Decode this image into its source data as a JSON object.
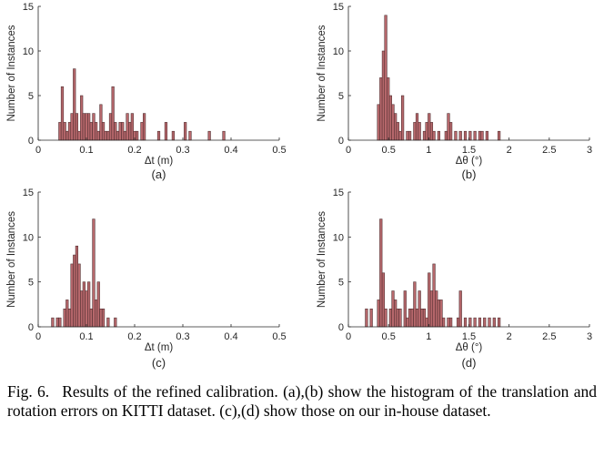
{
  "caption": {
    "label": "Fig. 6.",
    "text": "Results of the refined calibration. (a),(b) show the histogram of the translation and rotation errors on KITTI dataset. (c),(d) show those on our in-house dataset."
  },
  "colors": {
    "bar_fill": "#b7686c",
    "bar_edge": "#4a2a2c",
    "axis": "#262626",
    "grid": "#e6e6e6"
  },
  "chart_data": [
    {
      "id": "a",
      "type": "bar",
      "sublabel": "(a)",
      "xlabel": "Δt (m)",
      "ylabel": "Number of Instances",
      "xlim": [
        0,
        0.5
      ],
      "ylim": [
        0,
        15
      ],
      "xticks": [
        0,
        0.1,
        0.2,
        0.3,
        0.4,
        0.5
      ],
      "xtick_labels": [
        "0",
        "0.1",
        "0.2",
        "0.3",
        "0.4",
        "0.5"
      ],
      "yticks": [
        0,
        5,
        10,
        15
      ],
      "ytick_labels": [
        "0",
        "5",
        "10",
        "15"
      ],
      "grid": false,
      "bin_width": 0.005,
      "x": [
        0.045,
        0.05,
        0.055,
        0.06,
        0.065,
        0.07,
        0.075,
        0.08,
        0.085,
        0.09,
        0.095,
        0.1,
        0.105,
        0.11,
        0.115,
        0.12,
        0.125,
        0.13,
        0.135,
        0.14,
        0.145,
        0.15,
        0.155,
        0.16,
        0.165,
        0.17,
        0.175,
        0.18,
        0.185,
        0.19,
        0.195,
        0.2,
        0.205,
        0.215,
        0.22,
        0.25,
        0.265,
        0.28,
        0.305,
        0.315,
        0.355,
        0.385
      ],
      "values": [
        2,
        6,
        2,
        1,
        2,
        3,
        8,
        3,
        1,
        5,
        3,
        3,
        3,
        2,
        3,
        2,
        1,
        4,
        2,
        1,
        1,
        3,
        6,
        2,
        1,
        2,
        2,
        1,
        3,
        2,
        3,
        1,
        1,
        2,
        3,
        1,
        2,
        1,
        2,
        1,
        1,
        1
      ]
    },
    {
      "id": "b",
      "type": "bar",
      "sublabel": "(b)",
      "xlabel": "Δθ (°)",
      "ylabel": "Number of Instances",
      "xlim": [
        0,
        3
      ],
      "ylim": [
        0,
        15
      ],
      "xticks": [
        0,
        0.5,
        1,
        1.5,
        2,
        2.5,
        3
      ],
      "xtick_labels": [
        "0",
        "0.5",
        "1",
        "1.5",
        "2",
        "2.5",
        "3"
      ],
      "yticks": [
        0,
        5,
        10,
        15
      ],
      "ytick_labels": [
        "0",
        "5",
        "10",
        "15"
      ],
      "grid": false,
      "bin_width": 0.03,
      "x": [
        0.375,
        0.405,
        0.435,
        0.465,
        0.495,
        0.525,
        0.555,
        0.585,
        0.615,
        0.645,
        0.675,
        0.735,
        0.765,
        0.825,
        0.855,
        0.885,
        0.945,
        0.975,
        1.005,
        1.035,
        1.065,
        1.125,
        1.215,
        1.245,
        1.275,
        1.335,
        1.395,
        1.455,
        1.515,
        1.575,
        1.635,
        1.665,
        1.725,
        1.875
      ],
      "values": [
        4,
        7,
        10,
        14,
        7,
        5,
        4,
        3,
        2,
        1,
        5,
        1,
        1,
        2,
        3,
        2,
        1,
        2,
        3,
        2,
        1,
        1,
        1,
        3,
        2,
        1,
        1,
        1,
        1,
        1,
        1,
        1,
        1,
        1
      ]
    },
    {
      "id": "c",
      "type": "bar",
      "sublabel": "(c)",
      "xlabel": "Δt (m)",
      "ylabel": "Number of Instances",
      "xlim": [
        0,
        0.5
      ],
      "ylim": [
        0,
        15
      ],
      "xticks": [
        0,
        0.1,
        0.2,
        0.3,
        0.4,
        0.5
      ],
      "xtick_labels": [
        "0",
        "0.1",
        "0.2",
        "0.3",
        "0.4",
        "0.5"
      ],
      "yticks": [
        0,
        5,
        10,
        15
      ],
      "ytick_labels": [
        "0",
        "5",
        "10",
        "15"
      ],
      "grid": false,
      "bin_width": 0.005,
      "x": [
        0.03,
        0.04,
        0.045,
        0.055,
        0.06,
        0.065,
        0.07,
        0.075,
        0.08,
        0.085,
        0.09,
        0.095,
        0.1,
        0.105,
        0.11,
        0.115,
        0.12,
        0.125,
        0.13,
        0.135,
        0.145,
        0.16
      ],
      "values": [
        1,
        1,
        1,
        2,
        3,
        2,
        7,
        8,
        9,
        7,
        4,
        5,
        4,
        5,
        2,
        12,
        3,
        5,
        2,
        2,
        1,
        1
      ]
    },
    {
      "id": "d",
      "type": "bar",
      "sublabel": "(d)",
      "xlabel": "Δθ (°)",
      "ylabel": "Number of Instances",
      "xlim": [
        0,
        3
      ],
      "ylim": [
        0,
        15
      ],
      "xticks": [
        0,
        0.5,
        1,
        1.5,
        2,
        2.5,
        3
      ],
      "xtick_labels": [
        "0",
        "0.5",
        "1",
        "1.5",
        "2",
        "2.5",
        "3"
      ],
      "yticks": [
        0,
        5,
        10,
        15
      ],
      "ytick_labels": [
        "0",
        "5",
        "10",
        "15"
      ],
      "grid": false,
      "bin_width": 0.03,
      "x": [
        0.225,
        0.285,
        0.375,
        0.405,
        0.435,
        0.465,
        0.525,
        0.555,
        0.585,
        0.615,
        0.645,
        0.705,
        0.735,
        0.765,
        0.795,
        0.825,
        0.855,
        0.885,
        0.915,
        0.945,
        0.975,
        1.005,
        1.035,
        1.065,
        1.095,
        1.125,
        1.155,
        1.185,
        1.245,
        1.275,
        1.365,
        1.395,
        1.455,
        1.515,
        1.575,
        1.635,
        1.695,
        1.755,
        1.815,
        1.875
      ],
      "values": [
        2,
        2,
        3,
        12,
        6,
        2,
        2,
        4,
        3,
        2,
        2,
        4,
        1,
        2,
        2,
        5,
        2,
        4,
        2,
        2,
        1,
        6,
        4,
        7,
        4,
        3,
        3,
        1,
        1,
        1,
        1,
        4,
        1,
        1,
        1,
        1,
        1,
        1,
        1,
        1
      ]
    }
  ]
}
